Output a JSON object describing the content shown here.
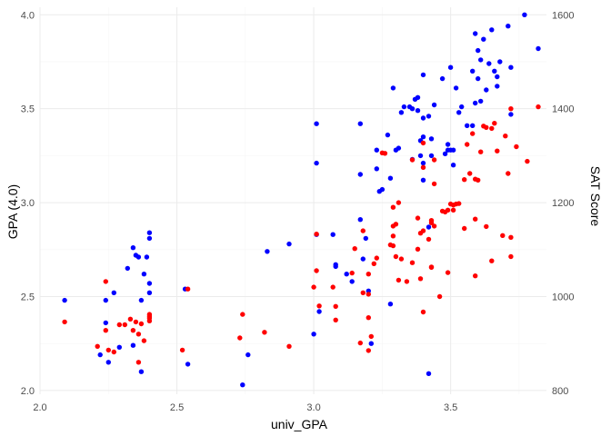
{
  "chart_data": {
    "type": "scatter",
    "xlabel": "univ_GPA",
    "ylabel_left": "GPA (4.0)",
    "ylabel_right": "SAT Score",
    "xlim": [
      2.0,
      3.85
    ],
    "ylim_left": [
      1.98,
      4.04
    ],
    "ylim_right": [
      792,
      1616
    ],
    "x_ticks": [
      "2.0",
      "2.5",
      "3.0",
      "3.5"
    ],
    "y_ticks_left": [
      "2.0",
      "2.5",
      "3.0",
      "3.5",
      "4.0"
    ],
    "y_ticks_right": [
      "800",
      "1000",
      "1200",
      "1400",
      "1600"
    ],
    "grid": true,
    "series": [
      {
        "color": "#0000ff",
        "axis": "left",
        "points": [
          [
            2.09,
            2.48
          ],
          [
            2.22,
            2.19
          ],
          [
            2.24,
            2.36
          ],
          [
            2.24,
            2.48
          ],
          [
            2.25,
            2.15
          ],
          [
            2.27,
            2.52
          ],
          [
            2.29,
            2.23
          ],
          [
            2.32,
            2.65
          ],
          [
            2.34,
            2.76
          ],
          [
            2.34,
            2.24
          ],
          [
            2.35,
            2.72
          ],
          [
            2.36,
            2.71
          ],
          [
            2.37,
            2.1
          ],
          [
            2.37,
            2.48
          ],
          [
            2.38,
            2.62
          ],
          [
            2.39,
            2.71
          ],
          [
            2.4,
            2.84
          ],
          [
            2.4,
            2.81
          ],
          [
            2.4,
            2.52
          ],
          [
            2.4,
            2.57
          ],
          [
            2.53,
            2.54
          ],
          [
            2.54,
            2.14
          ],
          [
            2.74,
            2.03
          ],
          [
            2.76,
            2.19
          ],
          [
            2.83,
            2.74
          ],
          [
            2.91,
            2.78
          ],
          [
            3.0,
            2.3
          ],
          [
            3.01,
            2.83
          ],
          [
            3.01,
            3.42
          ],
          [
            3.01,
            3.21
          ],
          [
            3.02,
            2.42
          ],
          [
            3.07,
            2.83
          ],
          [
            3.08,
            2.67
          ],
          [
            3.08,
            2.66
          ],
          [
            3.12,
            2.62
          ],
          [
            3.14,
            2.58
          ],
          [
            3.17,
            2.91
          ],
          [
            3.17,
            3.42
          ],
          [
            3.17,
            3.15
          ],
          [
            3.18,
            2.7
          ],
          [
            3.19,
            2.81
          ],
          [
            3.2,
            2.53
          ],
          [
            3.21,
            2.25
          ],
          [
            3.23,
            3.28
          ],
          [
            3.23,
            3.18
          ],
          [
            3.24,
            3.06
          ],
          [
            3.25,
            3.07
          ],
          [
            3.27,
            3.36
          ],
          [
            3.28,
            3.13
          ],
          [
            3.28,
            2.46
          ],
          [
            3.29,
            3.61
          ],
          [
            3.3,
            3.28
          ],
          [
            3.31,
            3.29
          ],
          [
            3.32,
            3.48
          ],
          [
            3.33,
            3.51
          ],
          [
            3.35,
            3.51
          ],
          [
            3.36,
            3.23
          ],
          [
            3.36,
            3.5
          ],
          [
            3.37,
            3.55
          ],
          [
            3.38,
            3.56
          ],
          [
            3.38,
            3.49
          ],
          [
            3.39,
            3.33
          ],
          [
            3.39,
            3.25
          ],
          [
            3.4,
            3.21
          ],
          [
            3.4,
            3.45
          ],
          [
            3.4,
            3.68
          ],
          [
            3.4,
            3.35
          ],
          [
            3.4,
            3.12
          ],
          [
            3.42,
            2.87
          ],
          [
            3.42,
            2.09
          ],
          [
            3.42,
            3.46
          ],
          [
            3.43,
            3.34
          ],
          [
            3.43,
            3.25
          ],
          [
            3.44,
            3.52
          ],
          [
            3.47,
            3.66
          ],
          [
            3.48,
            3.26
          ],
          [
            3.49,
            3.31
          ],
          [
            3.49,
            3.28
          ],
          [
            3.5,
            3.28
          ],
          [
            3.51,
            3.2
          ],
          [
            3.51,
            3.28
          ],
          [
            3.5,
            3.72
          ],
          [
            3.52,
            3.61
          ],
          [
            3.53,
            3.48
          ],
          [
            3.54,
            3.51
          ],
          [
            3.56,
            3.41
          ],
          [
            3.58,
            3.7
          ],
          [
            3.58,
            3.41
          ],
          [
            3.59,
            3.9
          ],
          [
            3.59,
            3.53
          ],
          [
            3.6,
            3.66
          ],
          [
            3.6,
            3.81
          ],
          [
            3.61,
            3.76
          ],
          [
            3.61,
            3.54
          ],
          [
            3.62,
            3.87
          ],
          [
            3.63,
            3.6
          ],
          [
            3.64,
            3.74
          ],
          [
            3.65,
            3.92
          ],
          [
            3.66,
            3.7
          ],
          [
            3.67,
            3.62
          ],
          [
            3.67,
            3.67
          ],
          [
            3.68,
            3.75
          ],
          [
            3.71,
            3.94
          ],
          [
            3.72,
            3.72
          ],
          [
            3.72,
            3.47
          ],
          [
            3.77,
            4.0
          ],
          [
            3.82,
            3.82
          ]
        ]
      },
      {
        "color": "#ff0000",
        "axis": "right",
        "points": [
          [
            2.09,
            946
          ],
          [
            2.21,
            894
          ],
          [
            2.24,
            1032
          ],
          [
            2.24,
            928
          ],
          [
            2.25,
            886
          ],
          [
            2.27,
            882
          ],
          [
            2.29,
            940
          ],
          [
            2.31,
            940
          ],
          [
            2.33,
            952
          ],
          [
            2.34,
            928
          ],
          [
            2.35,
            946
          ],
          [
            2.36,
            920
          ],
          [
            2.36,
            860
          ],
          [
            2.37,
            942
          ],
          [
            2.38,
            906
          ],
          [
            2.4,
            958
          ],
          [
            2.4,
            962
          ],
          [
            2.4,
            948
          ],
          [
            2.4,
            954
          ],
          [
            2.52,
            886
          ],
          [
            2.54,
            1016
          ],
          [
            2.73,
            912
          ],
          [
            2.74,
            962
          ],
          [
            2.82,
            924
          ],
          [
            2.91,
            894
          ],
          [
            3.0,
            1020
          ],
          [
            3.01,
            1133
          ],
          [
            3.01,
            1055
          ],
          [
            3.02,
            980
          ],
          [
            3.07,
            1020
          ],
          [
            3.08,
            950
          ],
          [
            3.08,
            979
          ],
          [
            3.14,
            1050
          ],
          [
            3.15,
            1102
          ],
          [
            3.17,
            901
          ],
          [
            3.18,
            1008
          ],
          [
            3.18,
            1140
          ],
          [
            3.2,
            955
          ],
          [
            3.2,
            1048
          ],
          [
            3.2,
            1005
          ],
          [
            3.2,
            885
          ],
          [
            3.21,
            915
          ],
          [
            3.22,
            1070
          ],
          [
            3.23,
            1082
          ],
          [
            3.25,
            1306
          ],
          [
            3.26,
            1305
          ],
          [
            3.28,
            1110
          ],
          [
            3.29,
            1190
          ],
          [
            3.29,
            1129
          ],
          [
            3.29,
            1108
          ],
          [
            3.29,
            1150
          ],
          [
            3.3,
            1085
          ],
          [
            3.3,
            1154
          ],
          [
            3.31,
            1200
          ],
          [
            3.31,
            1035
          ],
          [
            3.32,
            1080
          ],
          [
            3.34,
            1032
          ],
          [
            3.36,
            1291
          ],
          [
            3.36,
            1072
          ],
          [
            3.38,
            1167
          ],
          [
            3.38,
            1101
          ],
          [
            3.39,
            1038
          ],
          [
            3.39,
            1135
          ],
          [
            3.4,
            1275
          ],
          [
            3.4,
            1140
          ],
          [
            3.4,
            1327
          ],
          [
            3.4,
            967
          ],
          [
            3.42,
            1122
          ],
          [
            3.43,
            1162
          ],
          [
            3.43,
            1063
          ],
          [
            3.43,
            1157
          ],
          [
            3.44,
            1291
          ],
          [
            3.44,
            1240
          ],
          [
            3.43,
            1062
          ],
          [
            3.44,
            1150
          ],
          [
            3.46,
            1000
          ],
          [
            3.47,
            1182
          ],
          [
            3.48,
            1180
          ],
          [
            3.49,
            1184
          ],
          [
            3.49,
            1051
          ],
          [
            3.5,
            1197
          ],
          [
            3.51,
            1195
          ],
          [
            3.51,
            1184
          ],
          [
            3.52,
            1197
          ],
          [
            3.53,
            1198
          ],
          [
            3.55,
            1249
          ],
          [
            3.55,
            1145
          ],
          [
            3.56,
            1324
          ],
          [
            3.57,
            1262
          ],
          [
            3.58,
            1347
          ],
          [
            3.59,
            1250
          ],
          [
            3.59,
            1165
          ],
          [
            3.59,
            1044
          ],
          [
            3.6,
            1248
          ],
          [
            3.61,
            1308
          ],
          [
            3.62,
            1363
          ],
          [
            3.63,
            1360
          ],
          [
            3.63,
            1149
          ],
          [
            3.65,
            1076
          ],
          [
            3.65,
            1358
          ],
          [
            3.66,
            1369
          ],
          [
            3.67,
            1310
          ],
          [
            3.69,
            1130
          ],
          [
            3.7,
            1342
          ],
          [
            3.71,
            1262
          ],
          [
            3.72,
            1400
          ],
          [
            3.72,
            1126
          ],
          [
            3.72,
            1085
          ],
          [
            3.74,
            1319
          ],
          [
            3.78,
            1288
          ],
          [
            3.82,
            1404
          ]
        ]
      }
    ]
  }
}
